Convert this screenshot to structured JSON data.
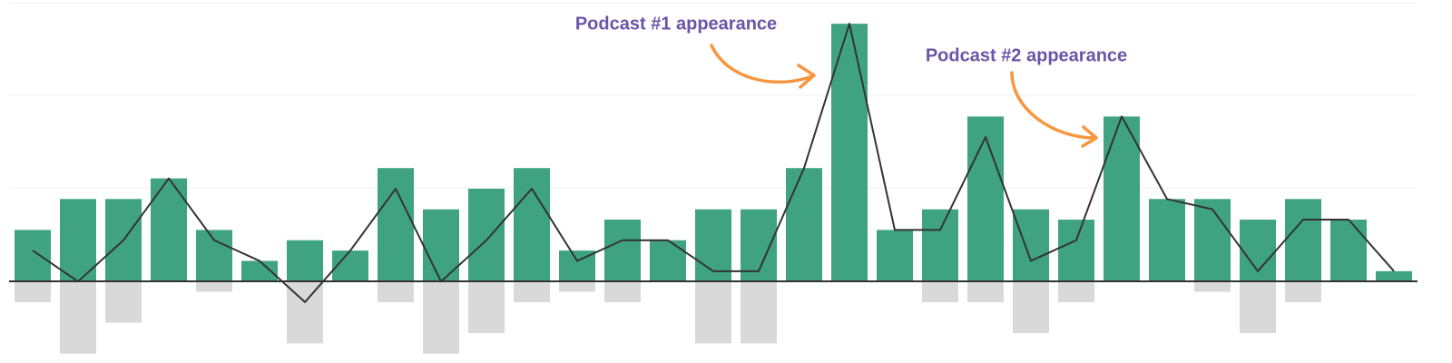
{
  "chart_data": {
    "type": "bar_line",
    "categories": [
      null,
      null,
      null,
      null,
      null,
      null,
      null,
      null,
      null,
      null,
      null,
      null,
      null,
      null,
      null,
      null,
      null,
      null,
      null,
      null,
      null,
      null,
      null,
      null,
      null,
      null,
      null,
      null,
      null,
      null,
      null
    ],
    "series": [
      {
        "type": "bar",
        "color": "#3fa382",
        "values": [
          5,
          8,
          8,
          10,
          5,
          2,
          4,
          3,
          11,
          7,
          9,
          11,
          3,
          6,
          4,
          7,
          7,
          11,
          25,
          5,
          7,
          16,
          7,
          6,
          16,
          8,
          8,
          6,
          8,
          6,
          1
        ]
      },
      {
        "type": "bar",
        "color": "#d9d9d9",
        "values": [
          -2,
          -7,
          -4,
          0,
          -1,
          0,
          -6,
          0,
          -2,
          -7,
          -5,
          -2,
          -1,
          -2,
          0,
          -6,
          -6,
          0,
          0,
          0,
          -2,
          -2,
          -5,
          -2,
          0,
          0,
          -1,
          -5,
          -2,
          0,
          0
        ]
      },
      {
        "type": "line",
        "color": "#333333",
        "values": [
          3,
          0,
          4,
          10,
          4,
          2,
          -2,
          3,
          9,
          0,
          4,
          9,
          2,
          4,
          4,
          1,
          1,
          11,
          25,
          5,
          5,
          14,
          2,
          4,
          16,
          8,
          7,
          1,
          6,
          6,
          1
        ]
      }
    ],
    "ylim": [
      -7.2,
      27.3
    ],
    "annotations": [
      "Podcast #1 appearance",
      "Podcast #2 appearance"
    ]
  }
}
